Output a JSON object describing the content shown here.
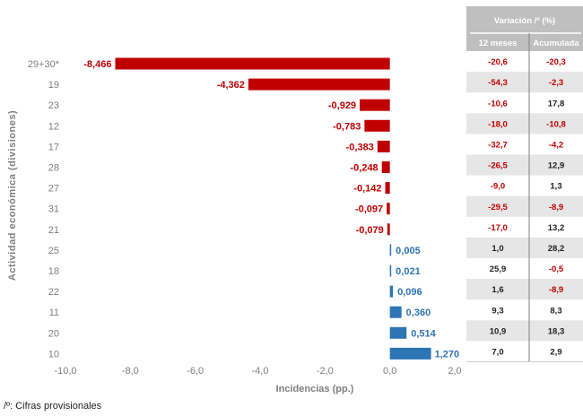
{
  "chart_data": {
    "type": "bar",
    "orientation": "horizontal",
    "categories": [
      "29+30*",
      "19",
      "23",
      "12",
      "17",
      "28",
      "27",
      "31",
      "21",
      "25",
      "18",
      "22",
      "11",
      "20",
      "10"
    ],
    "values": [
      -8.466,
      -4.362,
      -0.929,
      -0.783,
      -0.383,
      -0.248,
      -0.142,
      -0.097,
      -0.079,
      0.005,
      0.021,
      0.096,
      0.36,
      0.514,
      1.27
    ],
    "value_labels": [
      "-8,466",
      "-4,362",
      "-0,929",
      "-0,783",
      "-0,383",
      "-0,248",
      "-0,142",
      "-0,097",
      "-0,079",
      "0,005",
      "0,021",
      "0,096",
      "0,360",
      "0,514",
      "1,270"
    ],
    "xlim": [
      -10,
      2
    ],
    "xticks": [
      -10,
      -8,
      -6,
      -4,
      -2,
      0,
      2
    ],
    "xtick_labels": [
      "-10,0",
      "-8,0",
      "-6,0",
      "-4,0",
      "-2,0",
      "0,0",
      "2,0"
    ],
    "xlabel": "Incidencias (pp.)",
    "ylabel": "Actividad económica (divisiones)",
    "colors": {
      "negative": "#c00000",
      "positive": "#2e75b6"
    },
    "grid": false
  },
  "table": {
    "header": "Variación /º (%)",
    "columns": [
      "12 meses",
      "Acumulada"
    ],
    "rows": [
      [
        "-20,6",
        "-20,3"
      ],
      [
        "-54,3",
        "-2,3"
      ],
      [
        "-10,6",
        "17,8"
      ],
      [
        "-18,0",
        "-10,8"
      ],
      [
        "-32,7",
        "-4,2"
      ],
      [
        "-26,5",
        "12,9"
      ],
      [
        "-9,0",
        "1,3"
      ],
      [
        "-29,5",
        "-8,9"
      ],
      [
        "-17,0",
        "13,2"
      ],
      [
        "1,0",
        "28,2"
      ],
      [
        "25,9",
        "-0,5"
      ],
      [
        "1,6",
        "-8,9"
      ],
      [
        "9,3",
        "8,3"
      ],
      [
        "10,9",
        "18,3"
      ],
      [
        "7,0",
        "2,9"
      ]
    ],
    "colors": {
      "header_bg": "#bfbfbf",
      "header_text": "#ffffff",
      "shade_bg": "#e7e6e6",
      "negative_text": "#c00000",
      "positive_text": "#222222"
    }
  },
  "footnote": "/º: Cifras provisionales"
}
